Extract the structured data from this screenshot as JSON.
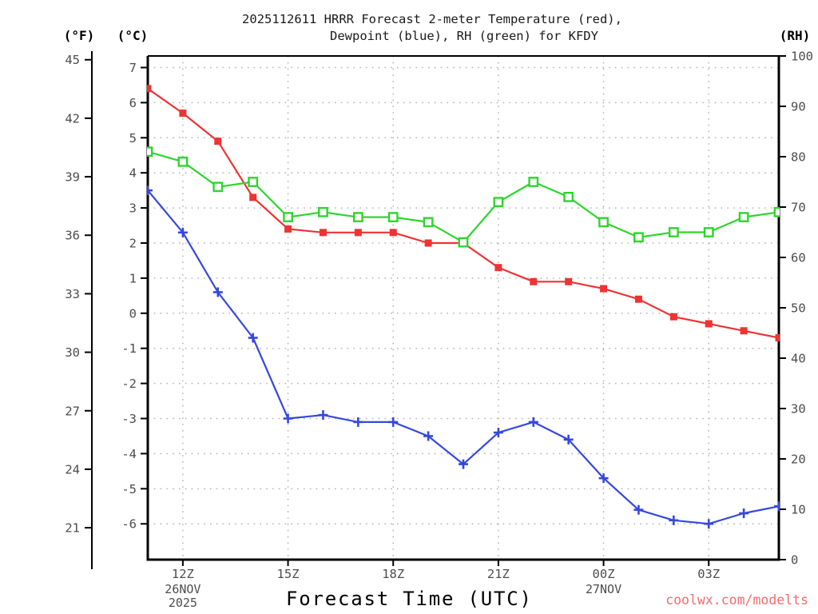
{
  "title": {
    "line1": "2025112611 HRRR Forecast 2-meter Temperature (red),",
    "line2": "Dewpoint (blue), RH (green) for KFDY"
  },
  "axis_labels": {
    "fahrenheit": "(°F)",
    "celsius": "(°C)",
    "rh": "(RH)"
  },
  "x_axis_label": "Forecast Time (UTC)",
  "watermark": {
    "text": "coolwx.com/modelts",
    "color": "#f26d6d"
  },
  "colors": {
    "temperature": "#ee3333",
    "dewpoint": "#3548de",
    "rh": "#2dd62d",
    "grid": "#b3b3b3",
    "axis": "#000000",
    "tick_text": "#4d4d4d"
  },
  "chart_data": {
    "type": "line",
    "title": "2025112611 HRRR Forecast 2-meter Temperature (red), Dewpoint (blue), RH (green) for KFDY",
    "station": "KFDY",
    "model_run": "2025112611 HRRR",
    "grid": true,
    "x": {
      "label": "Forecast Time (UTC)",
      "hours_utc": [
        "11Z",
        "12Z",
        "13Z",
        "14Z",
        "15Z",
        "16Z",
        "17Z",
        "18Z",
        "19Z",
        "20Z",
        "21Z",
        "22Z",
        "23Z",
        "00Z",
        "01Z",
        "02Z",
        "03Z",
        "04Z",
        "05Z"
      ],
      "major_ticks": [
        {
          "hour": "12Z",
          "date": "26NOV",
          "year": "2025"
        },
        {
          "hour": "15Z"
        },
        {
          "hour": "18Z"
        },
        {
          "hour": "21Z"
        },
        {
          "hour": "00Z",
          "date": "27NOV"
        },
        {
          "hour": "03Z"
        }
      ]
    },
    "y_left_celsius": {
      "label": "(°C)",
      "ticks": [
        7,
        6,
        5,
        4,
        3,
        2,
        1,
        0,
        -1,
        -2,
        -3,
        -4,
        -5,
        -6
      ],
      "range": [
        -7.02,
        7.33
      ]
    },
    "y_left_fahrenheit": {
      "label": "(°F)",
      "ticks": [
        45,
        42,
        39,
        36,
        33,
        30,
        27,
        24,
        21
      ]
    },
    "y_right_rh": {
      "label": "(RH)",
      "ticks": [
        100,
        90,
        80,
        70,
        60,
        50,
        40,
        30,
        20,
        10,
        0
      ],
      "range": [
        0,
        100
      ]
    },
    "series": [
      {
        "name": "2-meter Temperature (red)",
        "axis": "celsius",
        "marker": "filled-square",
        "color": "#ee3333",
        "values": [
          6.4,
          5.7,
          4.9,
          3.3,
          2.4,
          2.3,
          2.3,
          2.3,
          2.0,
          2.0,
          1.3,
          0.9,
          0.9,
          0.7,
          0.4,
          -0.1,
          -0.3,
          -0.5,
          -0.7
        ]
      },
      {
        "name": "Dewpoint (blue)",
        "axis": "celsius",
        "marker": "plus",
        "color": "#3548de",
        "values": [
          3.5,
          2.3,
          0.6,
          -0.7,
          -3.0,
          -2.9,
          -3.1,
          -3.1,
          -3.5,
          -4.3,
          -3.4,
          -3.1,
          -3.6,
          -4.7,
          -5.6,
          -5.9,
          -6.0,
          -5.7,
          -5.5
        ]
      },
      {
        "name": "RH (green)",
        "axis": "rh",
        "marker": "open-square",
        "color": "#2dd62d",
        "values": [
          81,
          79,
          74,
          75,
          68,
          69,
          68,
          68,
          67,
          63,
          71,
          75,
          72,
          67,
          64,
          65,
          65,
          68,
          69
        ]
      }
    ]
  }
}
